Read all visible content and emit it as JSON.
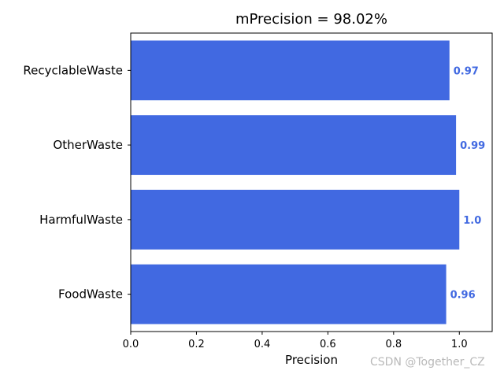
{
  "chart_data": {
    "type": "bar",
    "orientation": "horizontal",
    "title": "mPrecision = 98.02%",
    "xlabel": "Precision",
    "ylabel": "",
    "categories": [
      "RecyclableWaste",
      "OtherWaste",
      "HarmfulWaste",
      "FoodWaste"
    ],
    "values": [
      0.97,
      0.99,
      1.0,
      0.96
    ],
    "value_labels": [
      "0.97",
      "0.99",
      "1.0",
      "0.96"
    ],
    "xlim": [
      0,
      1.1
    ],
    "xticks": [
      0.0,
      0.2,
      0.4,
      0.6,
      0.8,
      1.0
    ],
    "xtick_labels": [
      "0.0",
      "0.2",
      "0.4",
      "0.6",
      "0.8",
      "1.0"
    ],
    "bar_color": "#4169e1",
    "label_color": "#4169e1",
    "grid": false,
    "legend": "none"
  },
  "watermark": "CSDN @Together_CZ"
}
